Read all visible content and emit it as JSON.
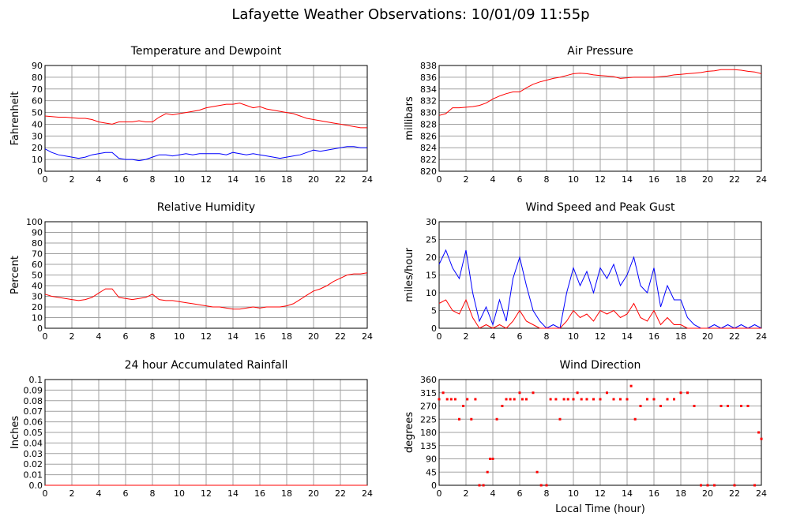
{
  "title": "Lafayette Weather Observations: 10/01/09 11:55p",
  "chart_data": [
    {
      "type": "line",
      "title": "Temperature and Dewpoint",
      "ylabel": "Fahrenheit",
      "x": [
        0,
        0.5,
        1,
        1.5,
        2,
        2.5,
        3,
        3.5,
        4,
        4.5,
        5,
        5.5,
        6,
        6.5,
        7,
        7.5,
        8,
        8.5,
        9,
        9.5,
        10,
        10.5,
        11,
        11.5,
        12,
        12.5,
        13,
        13.5,
        14,
        14.5,
        15,
        15.5,
        16,
        16.5,
        17,
        17.5,
        18,
        18.5,
        19,
        19.5,
        20,
        20.5,
        21,
        21.5,
        22,
        22.5,
        23,
        23.5,
        24
      ],
      "series": [
        {
          "color": "#ff0000",
          "values": [
            47,
            46.5,
            46,
            46,
            45.5,
            45,
            45,
            44,
            42,
            41,
            40,
            42,
            42,
            42,
            43,
            42,
            42,
            46,
            49,
            48,
            49,
            50,
            51,
            52,
            54,
            55,
            56,
            57,
            57,
            58,
            56,
            54,
            55,
            53,
            52,
            51,
            50,
            49,
            47,
            45,
            44,
            43,
            42,
            41,
            40,
            39,
            38,
            37,
            37
          ]
        },
        {
          "color": "#0000ff",
          "values": [
            19,
            16,
            14,
            13,
            12,
            11,
            12,
            14,
            15,
            16,
            16,
            11,
            10,
            10,
            9,
            10,
            12,
            14,
            14,
            13,
            14,
            15,
            14,
            15,
            15,
            15,
            15,
            14,
            16,
            15,
            14,
            15,
            14,
            13,
            12,
            11,
            12,
            13,
            14,
            16,
            18,
            17,
            18,
            19,
            20,
            21,
            21,
            20,
            20
          ]
        }
      ],
      "xlim": [
        0,
        24
      ],
      "xticks": [
        0,
        2,
        4,
        6,
        8,
        10,
        12,
        14,
        16,
        18,
        20,
        22,
        24
      ],
      "ylim": [
        0,
        90
      ],
      "yticks": [
        0,
        10,
        20,
        30,
        40,
        50,
        60,
        70,
        80,
        90
      ],
      "grid": true
    },
    {
      "type": "line",
      "title": "Air Pressure",
      "ylabel": "millibars",
      "x": [
        0,
        0.5,
        1,
        1.5,
        2,
        2.5,
        3,
        3.5,
        4,
        4.5,
        5,
        5.5,
        6,
        6.5,
        7,
        7.5,
        8,
        8.5,
        9,
        9.5,
        10,
        10.5,
        11,
        11.5,
        12,
        12.5,
        13,
        13.5,
        14,
        14.5,
        15,
        15.5,
        16,
        16.5,
        17,
        17.5,
        18,
        18.5,
        19,
        19.5,
        20,
        20.5,
        21,
        21.5,
        22,
        22.5,
        23,
        23.5,
        24
      ],
      "series": [
        {
          "color": "#ff0000",
          "values": [
            829.5,
            829.8,
            830.8,
            830.8,
            830.9,
            831,
            831.2,
            831.6,
            832.3,
            832.8,
            833.2,
            833.5,
            833.5,
            834.2,
            834.8,
            835.2,
            835.5,
            835.8,
            836,
            836.3,
            836.6,
            836.7,
            836.6,
            836.4,
            836.3,
            836.2,
            836.1,
            835.8,
            835.9,
            836,
            836,
            836,
            836,
            836.1,
            836.2,
            836.4,
            836.5,
            836.6,
            836.7,
            836.8,
            837,
            837.1,
            837.3,
            837.3,
            837.3,
            837.2,
            837,
            836.9,
            836.6
          ]
        }
      ],
      "xlim": [
        0,
        24
      ],
      "xticks": [
        0,
        2,
        4,
        6,
        8,
        10,
        12,
        14,
        16,
        18,
        20,
        22,
        24
      ],
      "ylim": [
        820,
        838
      ],
      "yticks": [
        820,
        822,
        824,
        826,
        828,
        830,
        832,
        834,
        836,
        838
      ],
      "grid": true
    },
    {
      "type": "line",
      "title": "Relative Humidity",
      "ylabel": "Percent",
      "x": [
        0,
        0.5,
        1,
        1.5,
        2,
        2.5,
        3,
        3.5,
        4,
        4.5,
        5,
        5.5,
        6,
        6.5,
        7,
        7.5,
        8,
        8.5,
        9,
        9.5,
        10,
        10.5,
        11,
        11.5,
        12,
        12.5,
        13,
        13.5,
        14,
        14.5,
        15,
        15.5,
        16,
        16.5,
        17,
        17.5,
        18,
        18.5,
        19,
        19.5,
        20,
        20.5,
        21,
        21.5,
        22,
        22.5,
        23,
        23.5,
        24
      ],
      "series": [
        {
          "color": "#ff0000",
          "values": [
            32,
            30,
            29,
            28,
            27,
            26,
            27,
            29,
            33,
            37,
            37,
            29,
            28,
            27,
            28,
            29,
            32,
            27,
            26,
            26,
            25,
            24,
            23,
            22,
            21,
            20,
            20,
            19,
            18,
            18,
            19,
            20,
            19,
            20,
            20,
            20,
            21,
            23,
            27,
            31,
            35,
            37,
            40,
            44,
            47,
            50,
            51,
            51,
            52
          ]
        }
      ],
      "xlim": [
        0,
        24
      ],
      "xticks": [
        0,
        2,
        4,
        6,
        8,
        10,
        12,
        14,
        16,
        18,
        20,
        22,
        24
      ],
      "ylim": [
        0,
        100
      ],
      "yticks": [
        0,
        10,
        20,
        30,
        40,
        50,
        60,
        70,
        80,
        90,
        100
      ],
      "grid": true
    },
    {
      "type": "line",
      "title": "Wind Speed and Peak Gust",
      "ylabel": "miles/hour",
      "x": [
        0,
        0.5,
        1,
        1.5,
        2,
        2.5,
        3,
        3.5,
        4,
        4.5,
        5,
        5.5,
        6,
        6.5,
        7,
        7.5,
        8,
        8.5,
        9,
        9.5,
        10,
        10.5,
        11,
        11.5,
        12,
        12.5,
        13,
        13.5,
        14,
        14.5,
        15,
        15.5,
        16,
        16.5,
        17,
        17.5,
        18,
        18.5,
        19,
        19.5,
        20,
        20.5,
        21,
        21.5,
        22,
        22.5,
        23,
        23.5,
        24
      ],
      "series": [
        {
          "color": "#0000ff",
          "values": [
            18,
            22,
            17,
            14,
            22,
            10,
            2,
            6,
            1,
            8,
            2,
            14,
            20,
            12,
            5,
            2,
            0,
            1,
            0,
            10,
            17,
            12,
            16,
            10,
            17,
            14,
            18,
            12,
            15,
            20,
            12,
            10,
            17,
            6,
            12,
            8,
            8,
            3,
            1,
            0,
            0,
            1,
            0,
            1,
            0,
            1,
            0,
            1,
            0
          ]
        },
        {
          "color": "#ff0000",
          "values": [
            7,
            8,
            5,
            4,
            8,
            3,
            0,
            1,
            0,
            1,
            0,
            2,
            5,
            2,
            1,
            0,
            0,
            0,
            0,
            2,
            5,
            3,
            4,
            2,
            5,
            4,
            5,
            3,
            4,
            7,
            3,
            2,
            5,
            1,
            3,
            1,
            1,
            0,
            0,
            0,
            0,
            0,
            0,
            0,
            0,
            0,
            0,
            0,
            0
          ]
        }
      ],
      "xlim": [
        0,
        24
      ],
      "xticks": [
        0,
        2,
        4,
        6,
        8,
        10,
        12,
        14,
        16,
        18,
        20,
        22,
        24
      ],
      "ylim": [
        0,
        30
      ],
      "yticks": [
        0,
        5,
        10,
        15,
        20,
        25,
        30
      ],
      "grid": true
    },
    {
      "type": "line",
      "title": "24 hour Accumulated Rainfall",
      "ylabel": "Inches",
      "x": [
        0,
        24
      ],
      "series": [
        {
          "color": "#ff0000",
          "values": [
            0,
            0
          ]
        }
      ],
      "xlim": [
        0,
        24
      ],
      "xticks": [
        0,
        2,
        4,
        6,
        8,
        10,
        12,
        14,
        16,
        18,
        20,
        22,
        24
      ],
      "ylim": [
        0,
        0.1
      ],
      "yticks": [
        {
          "value": 0,
          "label": "0.0"
        },
        0.01,
        0.02,
        0.03,
        0.04,
        0.05,
        0.06,
        0.07,
        0.08,
        0.09,
        0.1
      ],
      "grid": true
    },
    {
      "type": "scatter",
      "title": "Wind Direction",
      "ylabel": "degrees",
      "xlabel": "Local Time (hour)",
      "x": [
        0,
        0.3,
        0.6,
        0.9,
        1.2,
        1.5,
        1.8,
        2.1,
        2.4,
        2.7,
        3.0,
        3.3,
        3.6,
        3.8,
        4.0,
        4.3,
        4.7,
        5.0,
        5.3,
        5.6,
        6.0,
        6.2,
        6.5,
        7.0,
        7.3,
        7.6,
        8.0,
        8.3,
        8.7,
        9.0,
        9.3,
        9.6,
        10.0,
        10.3,
        10.6,
        11.0,
        11.5,
        12.0,
        12.5,
        13.0,
        13.5,
        14.0,
        14.3,
        14.6,
        15.0,
        15.5,
        16.0,
        16.5,
        17.0,
        17.5,
        18.0,
        18.5,
        19.0,
        19.5,
        20.0,
        20.5,
        21.0,
        21.5,
        22.0,
        22.5,
        23.0,
        23.5,
        23.8,
        24.0
      ],
      "series": [
        {
          "color": "#ff0000",
          "values": [
            293,
            315,
            293,
            293,
            293,
            225,
            270,
            293,
            225,
            293,
            0,
            0,
            45,
            90,
            90,
            225,
            270,
            293,
            293,
            293,
            315,
            293,
            293,
            315,
            45,
            0,
            0,
            293,
            293,
            225,
            293,
            293,
            293,
            315,
            293,
            293,
            293,
            293,
            315,
            293,
            293,
            293,
            338,
            225,
            270,
            293,
            293,
            270,
            293,
            293,
            315,
            315,
            270,
            0,
            0,
            0,
            270,
            270,
            0,
            270,
            270,
            0,
            180,
            158
          ]
        }
      ],
      "xlim": [
        0,
        24
      ],
      "xticks": [
        0,
        2,
        4,
        6,
        8,
        10,
        12,
        14,
        16,
        18,
        20,
        22,
        24
      ],
      "ylim": [
        0,
        360
      ],
      "yticks": [
        0,
        45,
        90,
        135,
        180,
        225,
        270,
        315,
        360
      ],
      "grid": true
    }
  ]
}
